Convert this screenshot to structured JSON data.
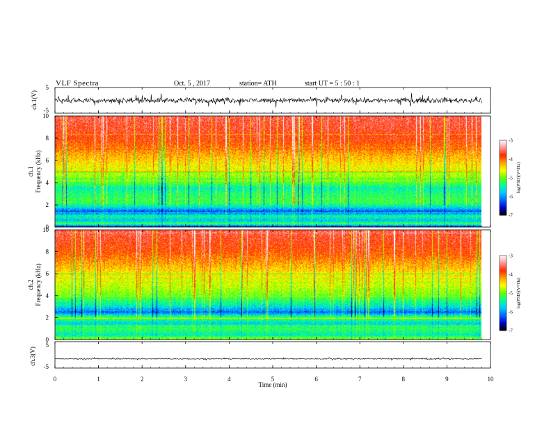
{
  "header": {
    "title": "VLF  Spectra",
    "date": "Oct. 5  , 2017",
    "station": "station= ATH",
    "start": "start  UT  =    5  : 50 : 1"
  },
  "colors": {
    "scale": [
      "#000000",
      "#0000c8",
      "#0064ff",
      "#00c8ff",
      "#00ff96",
      "#64ff00",
      "#ffff00",
      "#ffa000",
      "#ff2800",
      "#ff9696",
      "#ffffff"
    ],
    "waveform": "#000000"
  },
  "chart_data": [
    {
      "type": "line",
      "name": "ch1-waveform",
      "ylabel": "ch.1(V)",
      "ylim": [
        -5,
        5
      ],
      "yticks": [
        "5",
        "-5"
      ],
      "x": "time (min)",
      "xlim": [
        0,
        10
      ],
      "data_end_min": 9.8,
      "description_values": {
        "baseline_v": 0.0,
        "noise_amplitude_v": 1.5
      }
    },
    {
      "type": "heatmap",
      "name": "ch1-spectrogram",
      "ylabel": "ch.1\nFrequency  (kHz)",
      "ylabel_line1": "ch.1",
      "ylabel_line2": "Frequency  (kHz)",
      "ylim": [
        0,
        10
      ],
      "yticks": [
        "10",
        "8",
        "6",
        "4",
        "2",
        "0"
      ],
      "xlim": [
        0,
        10
      ],
      "data_end_min": 9.8,
      "colorbar": {
        "label": "log(PSD)(V²/Hz)",
        "range": [
          -7,
          -3
        ],
        "ticks": [
          "-3",
          "-4",
          "-5",
          "-6",
          "-7"
        ]
      },
      "profile_log_psd_by_khz": [
        [
          0.0,
          -6.6
        ],
        [
          0.3,
          -5.2
        ],
        [
          0.6,
          -5.8
        ],
        [
          1.0,
          -5.4
        ],
        [
          1.4,
          -6.3
        ],
        [
          1.8,
          -5.6
        ],
        [
          2.2,
          -5.2
        ],
        [
          3.0,
          -5.3
        ],
        [
          3.5,
          -5.5
        ],
        [
          4.0,
          -5.1
        ],
        [
          5.0,
          -4.7
        ],
        [
          6.0,
          -4.4
        ],
        [
          7.0,
          -4.1
        ],
        [
          8.0,
          -3.8
        ],
        [
          10.0,
          -3.6
        ]
      ]
    },
    {
      "type": "heatmap",
      "name": "ch2-spectrogram",
      "ylabel_line1": "ch.2",
      "ylabel_line2": "Frequency  (kHz)",
      "ylim": [
        0,
        10
      ],
      "yticks": [
        "10",
        "8",
        "6",
        "4",
        "2",
        "0"
      ],
      "xlim": [
        0,
        10
      ],
      "data_end_min": 9.8,
      "colorbar": {
        "label": "log(PSD)(V²/Hz)",
        "range": [
          -7,
          -3
        ],
        "ticks": [
          "-3",
          "-4",
          "-5",
          "-6",
          "-7"
        ]
      },
      "profile_log_psd_by_khz": [
        [
          0.0,
          -5.0
        ],
        [
          0.5,
          -5.5
        ],
        [
          1.0,
          -5.2
        ],
        [
          1.5,
          -5.7
        ],
        [
          2.0,
          -5.1
        ],
        [
          2.5,
          -6.2
        ],
        [
          3.0,
          -5.6
        ],
        [
          3.5,
          -5.3
        ],
        [
          4.0,
          -5.0
        ],
        [
          5.0,
          -4.7
        ],
        [
          6.0,
          -4.5
        ],
        [
          7.0,
          -4.2
        ],
        [
          8.0,
          -3.9
        ],
        [
          10.0,
          -3.6
        ]
      ]
    },
    {
      "type": "line",
      "name": "ch3-waveform",
      "ylabel": "ch.3(V)",
      "ylim": [
        -5,
        5
      ],
      "yticks": [
        "5",
        "-5"
      ],
      "xlim": [
        0,
        10
      ],
      "data_end_min": 9.8,
      "description_values": {
        "baseline_v": -1.5,
        "noise_amplitude_v": 0.3
      }
    }
  ],
  "xaxis": {
    "label": "Time  (min)",
    "ticks": [
      "0",
      "1",
      "2",
      "3",
      "4",
      "5",
      "6",
      "7",
      "8",
      "9",
      "10"
    ]
  }
}
